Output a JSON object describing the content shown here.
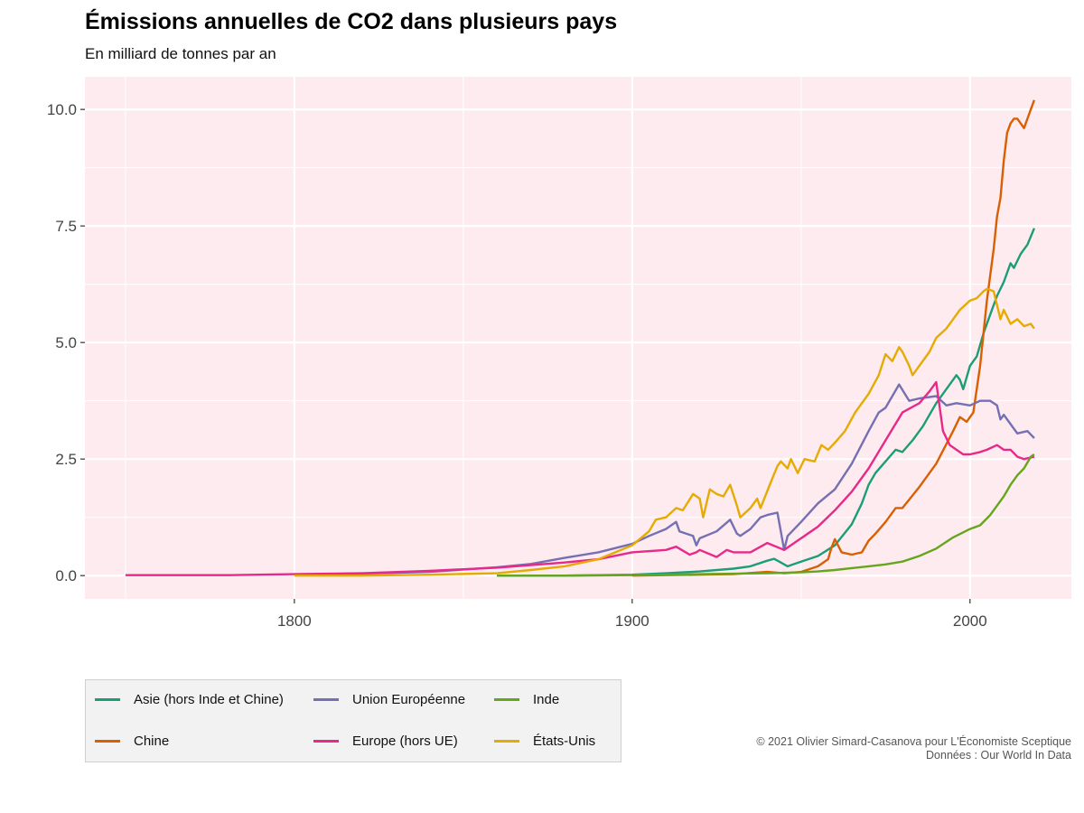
{
  "title": "Émissions annuelles de CO2 dans plusieurs pays",
  "subtitle": "En milliard de tonnes par an",
  "credits": {
    "line1": "© 2021 Olivier Simard-Casanova pour L'Économiste Sceptique",
    "line2": "Données : Our World In Data"
  },
  "chart_data": {
    "type": "line",
    "title": "Émissions annuelles de CO2 dans plusieurs pays",
    "subtitle": "En milliard de tonnes par an",
    "xlabel": "",
    "ylabel": "",
    "xlim": [
      1738,
      2030
    ],
    "ylim": [
      -0.5,
      10.7
    ],
    "x_ticks": [
      1800,
      1900,
      2000
    ],
    "y_ticks": [
      0,
      2.5,
      5,
      7.5,
      10
    ],
    "y_tick_labels": [
      "0.0",
      "2.5",
      "5.0",
      "7.5",
      "10.0"
    ],
    "grid": true,
    "background": "#fdebef",
    "legend_position": "bottom",
    "series": [
      {
        "name": "Asie (hors Inde et Chine)",
        "color": "#1b9e77",
        "points": [
          [
            1860,
            0
          ],
          [
            1880,
            0
          ],
          [
            1900,
            0.02
          ],
          [
            1910,
            0.05
          ],
          [
            1920,
            0.09
          ],
          [
            1930,
            0.15
          ],
          [
            1935,
            0.2
          ],
          [
            1940,
            0.32
          ],
          [
            1942,
            0.36
          ],
          [
            1944,
            0.28
          ],
          [
            1946,
            0.2
          ],
          [
            1950,
            0.3
          ],
          [
            1955,
            0.42
          ],
          [
            1960,
            0.65
          ],
          [
            1965,
            1.1
          ],
          [
            1968,
            1.55
          ],
          [
            1970,
            1.95
          ],
          [
            1972,
            2.2
          ],
          [
            1975,
            2.45
          ],
          [
            1978,
            2.7
          ],
          [
            1980,
            2.65
          ],
          [
            1983,
            2.9
          ],
          [
            1986,
            3.2
          ],
          [
            1990,
            3.7
          ],
          [
            1993,
            4.0
          ],
          [
            1996,
            4.3
          ],
          [
            1997,
            4.2
          ],
          [
            1998,
            4.0
          ],
          [
            2000,
            4.5
          ],
          [
            2002,
            4.7
          ],
          [
            2004,
            5.2
          ],
          [
            2006,
            5.6
          ],
          [
            2008,
            6.0
          ],
          [
            2010,
            6.3
          ],
          [
            2012,
            6.7
          ],
          [
            2013,
            6.6
          ],
          [
            2015,
            6.9
          ],
          [
            2017,
            7.1
          ],
          [
            2019,
            7.45
          ]
        ]
      },
      {
        "name": "Chine",
        "color": "#d95f02",
        "points": [
          [
            1900,
            0
          ],
          [
            1920,
            0.02
          ],
          [
            1930,
            0.03
          ],
          [
            1940,
            0.08
          ],
          [
            1945,
            0.05
          ],
          [
            1950,
            0.08
          ],
          [
            1955,
            0.2
          ],
          [
            1958,
            0.35
          ],
          [
            1959,
            0.6
          ],
          [
            1960,
            0.78
          ],
          [
            1962,
            0.5
          ],
          [
            1965,
            0.45
          ],
          [
            1968,
            0.5
          ],
          [
            1970,
            0.75
          ],
          [
            1972,
            0.9
          ],
          [
            1975,
            1.15
          ],
          [
            1978,
            1.45
          ],
          [
            1980,
            1.45
          ],
          [
            1985,
            1.9
          ],
          [
            1990,
            2.4
          ],
          [
            1995,
            3.1
          ],
          [
            1997,
            3.4
          ],
          [
            1999,
            3.3
          ],
          [
            2001,
            3.5
          ],
          [
            2003,
            4.5
          ],
          [
            2005,
            5.9
          ],
          [
            2007,
            7.0
          ],
          [
            2008,
            7.7
          ],
          [
            2009,
            8.1
          ],
          [
            2010,
            8.9
          ],
          [
            2011,
            9.5
          ],
          [
            2012,
            9.7
          ],
          [
            2013,
            9.8
          ],
          [
            2014,
            9.8
          ],
          [
            2015,
            9.7
          ],
          [
            2016,
            9.6
          ],
          [
            2017,
            9.8
          ],
          [
            2018,
            10.0
          ],
          [
            2019,
            10.2
          ]
        ]
      },
      {
        "name": "Union Européenne",
        "color": "#7570b3",
        "points": [
          [
            1800,
            0.02
          ],
          [
            1820,
            0.04
          ],
          [
            1840,
            0.08
          ],
          [
            1860,
            0.18
          ],
          [
            1870,
            0.25
          ],
          [
            1880,
            0.38
          ],
          [
            1890,
            0.5
          ],
          [
            1900,
            0.68
          ],
          [
            1905,
            0.85
          ],
          [
            1910,
            1.0
          ],
          [
            1913,
            1.15
          ],
          [
            1914,
            0.95
          ],
          [
            1918,
            0.85
          ],
          [
            1919,
            0.65
          ],
          [
            1920,
            0.8
          ],
          [
            1925,
            0.95
          ],
          [
            1929,
            1.2
          ],
          [
            1931,
            0.9
          ],
          [
            1932,
            0.85
          ],
          [
            1935,
            1.0
          ],
          [
            1938,
            1.25
          ],
          [
            1940,
            1.3
          ],
          [
            1943,
            1.35
          ],
          [
            1945,
            0.55
          ],
          [
            1946,
            0.85
          ],
          [
            1950,
            1.15
          ],
          [
            1955,
            1.55
          ],
          [
            1960,
            1.85
          ],
          [
            1965,
            2.4
          ],
          [
            1970,
            3.1
          ],
          [
            1973,
            3.5
          ],
          [
            1975,
            3.6
          ],
          [
            1979,
            4.1
          ],
          [
            1982,
            3.75
          ],
          [
            1985,
            3.8
          ],
          [
            1990,
            3.85
          ],
          [
            1993,
            3.65
          ],
          [
            1996,
            3.7
          ],
          [
            2000,
            3.65
          ],
          [
            2003,
            3.75
          ],
          [
            2006,
            3.75
          ],
          [
            2008,
            3.65
          ],
          [
            2009,
            3.35
          ],
          [
            2010,
            3.45
          ],
          [
            2012,
            3.25
          ],
          [
            2014,
            3.05
          ],
          [
            2017,
            3.1
          ],
          [
            2019,
            2.95
          ]
        ]
      },
      {
        "name": "Europe (hors UE)",
        "color": "#e7298a",
        "points": [
          [
            1750,
            0.01
          ],
          [
            1780,
            0.01
          ],
          [
            1800,
            0.03
          ],
          [
            1820,
            0.05
          ],
          [
            1840,
            0.1
          ],
          [
            1860,
            0.17
          ],
          [
            1880,
            0.28
          ],
          [
            1890,
            0.35
          ],
          [
            1900,
            0.5
          ],
          [
            1910,
            0.55
          ],
          [
            1913,
            0.62
          ],
          [
            1917,
            0.45
          ],
          [
            1919,
            0.5
          ],
          [
            1920,
            0.55
          ],
          [
            1925,
            0.4
          ],
          [
            1928,
            0.55
          ],
          [
            1930,
            0.5
          ],
          [
            1935,
            0.5
          ],
          [
            1940,
            0.7
          ],
          [
            1945,
            0.55
          ],
          [
            1950,
            0.8
          ],
          [
            1955,
            1.05
          ],
          [
            1960,
            1.4
          ],
          [
            1965,
            1.8
          ],
          [
            1970,
            2.3
          ],
          [
            1975,
            2.9
          ],
          [
            1980,
            3.5
          ],
          [
            1985,
            3.7
          ],
          [
            1988,
            3.95
          ],
          [
            1990,
            4.15
          ],
          [
            1992,
            3.1
          ],
          [
            1994,
            2.8
          ],
          [
            1996,
            2.7
          ],
          [
            1998,
            2.6
          ],
          [
            2000,
            2.6
          ],
          [
            2003,
            2.65
          ],
          [
            2005,
            2.7
          ],
          [
            2008,
            2.8
          ],
          [
            2010,
            2.7
          ],
          [
            2012,
            2.7
          ],
          [
            2014,
            2.55
          ],
          [
            2016,
            2.5
          ],
          [
            2019,
            2.55
          ]
        ]
      },
      {
        "name": "Inde",
        "color": "#66a61e",
        "points": [
          [
            1860,
            0
          ],
          [
            1880,
            0
          ],
          [
            1900,
            0.01
          ],
          [
            1910,
            0.02
          ],
          [
            1920,
            0.03
          ],
          [
            1930,
            0.04
          ],
          [
            1940,
            0.05
          ],
          [
            1950,
            0.07
          ],
          [
            1955,
            0.09
          ],
          [
            1960,
            0.12
          ],
          [
            1965,
            0.16
          ],
          [
            1970,
            0.2
          ],
          [
            1975,
            0.24
          ],
          [
            1980,
            0.3
          ],
          [
            1985,
            0.42
          ],
          [
            1990,
            0.58
          ],
          [
            1995,
            0.82
          ],
          [
            2000,
            1.0
          ],
          [
            2003,
            1.08
          ],
          [
            2006,
            1.3
          ],
          [
            2008,
            1.5
          ],
          [
            2010,
            1.7
          ],
          [
            2012,
            1.95
          ],
          [
            2014,
            2.15
          ],
          [
            2016,
            2.3
          ],
          [
            2018,
            2.55
          ],
          [
            2019,
            2.6
          ]
        ]
      },
      {
        "name": "États-Unis",
        "color": "#e6ab02",
        "points": [
          [
            1800,
            0
          ],
          [
            1820,
            0
          ],
          [
            1840,
            0.02
          ],
          [
            1860,
            0.05
          ],
          [
            1870,
            0.12
          ],
          [
            1880,
            0.2
          ],
          [
            1890,
            0.35
          ],
          [
            1900,
            0.65
          ],
          [
            1905,
            0.95
          ],
          [
            1907,
            1.2
          ],
          [
            1910,
            1.25
          ],
          [
            1913,
            1.45
          ],
          [
            1915,
            1.4
          ],
          [
            1918,
            1.75
          ],
          [
            1920,
            1.65
          ],
          [
            1921,
            1.25
          ],
          [
            1923,
            1.85
          ],
          [
            1925,
            1.75
          ],
          [
            1927,
            1.7
          ],
          [
            1929,
            1.95
          ],
          [
            1931,
            1.5
          ],
          [
            1932,
            1.25
          ],
          [
            1935,
            1.45
          ],
          [
            1937,
            1.65
          ],
          [
            1938,
            1.45
          ],
          [
            1941,
            2.0
          ],
          [
            1943,
            2.35
          ],
          [
            1944,
            2.45
          ],
          [
            1946,
            2.3
          ],
          [
            1947,
            2.5
          ],
          [
            1949,
            2.2
          ],
          [
            1951,
            2.5
          ],
          [
            1954,
            2.45
          ],
          [
            1956,
            2.8
          ],
          [
            1958,
            2.7
          ],
          [
            1960,
            2.85
          ],
          [
            1963,
            3.1
          ],
          [
            1966,
            3.5
          ],
          [
            1970,
            3.9
          ],
          [
            1973,
            4.3
          ],
          [
            1975,
            4.75
          ],
          [
            1977,
            4.6
          ],
          [
            1979,
            4.9
          ],
          [
            1980,
            4.8
          ],
          [
            1982,
            4.5
          ],
          [
            1983,
            4.3
          ],
          [
            1985,
            4.5
          ],
          [
            1988,
            4.8
          ],
          [
            1990,
            5.1
          ],
          [
            1993,
            5.3
          ],
          [
            1995,
            5.5
          ],
          [
            1997,
            5.7
          ],
          [
            2000,
            5.9
          ],
          [
            2002,
            5.95
          ],
          [
            2004,
            6.1
          ],
          [
            2005,
            6.15
          ],
          [
            2007,
            6.1
          ],
          [
            2009,
            5.5
          ],
          [
            2010,
            5.7
          ],
          [
            2012,
            5.4
          ],
          [
            2014,
            5.5
          ],
          [
            2016,
            5.35
          ],
          [
            2018,
            5.4
          ],
          [
            2019,
            5.3
          ]
        ]
      }
    ]
  },
  "legend": {
    "items": [
      {
        "label": "Asie (hors Inde et Chine)",
        "color": "#1b9e77"
      },
      {
        "label": "Union Européenne",
        "color": "#7570b3"
      },
      {
        "label": "Inde",
        "color": "#66a61e"
      },
      {
        "label": "Chine",
        "color": "#d95f02"
      },
      {
        "label": "Europe (hors UE)",
        "color": "#e7298a"
      },
      {
        "label": "États-Unis",
        "color": "#e6ab02"
      }
    ]
  }
}
